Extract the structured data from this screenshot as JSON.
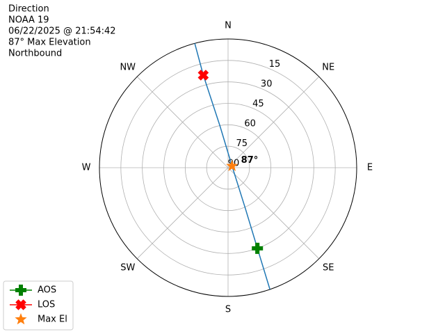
{
  "chart_data": {
    "type": "polar",
    "title": [
      "Direction",
      "NOAA 19",
      "06/22/2025 @ 21:54:42",
      "87° Max Elevation",
      "Northbound"
    ],
    "rlim": [
      90,
      0
    ],
    "rticks": [
      15,
      30,
      45,
      60,
      75,
      90
    ],
    "thetaticks": [
      {
        "value": 0,
        "label": "N"
      },
      {
        "value": 45,
        "label": "NE"
      },
      {
        "value": 90,
        "label": "E"
      },
      {
        "value": 135,
        "label": "SE"
      },
      {
        "value": 180,
        "label": "S"
      },
      {
        "value": 225,
        "label": "SW"
      },
      {
        "value": 270,
        "label": "W"
      },
      {
        "value": 315,
        "label": "NW"
      }
    ],
    "grid": true,
    "track": {
      "color": "#1f77b4",
      "azimuth": [
        161,
        160,
        157,
        67,
        349,
        345,
        345
      ],
      "elevation": [
        0,
        30,
        59,
        87,
        60,
        23,
        0
      ]
    },
    "series": [
      {
        "name": "AOS",
        "color": "#008000",
        "marker": "plus",
        "azimuth": [
          160
        ],
        "elevation": [
          30
        ]
      },
      {
        "name": "LOS",
        "color": "#ff0000",
        "marker": "x",
        "azimuth": [
          345
        ],
        "elevation": [
          23
        ]
      },
      {
        "name": "Max El",
        "color": "#ff7f0e",
        "marker": "star",
        "azimuth": [
          67
        ],
        "elevation": [
          87
        ]
      }
    ],
    "annotation": "87°",
    "legend": "lower left"
  }
}
